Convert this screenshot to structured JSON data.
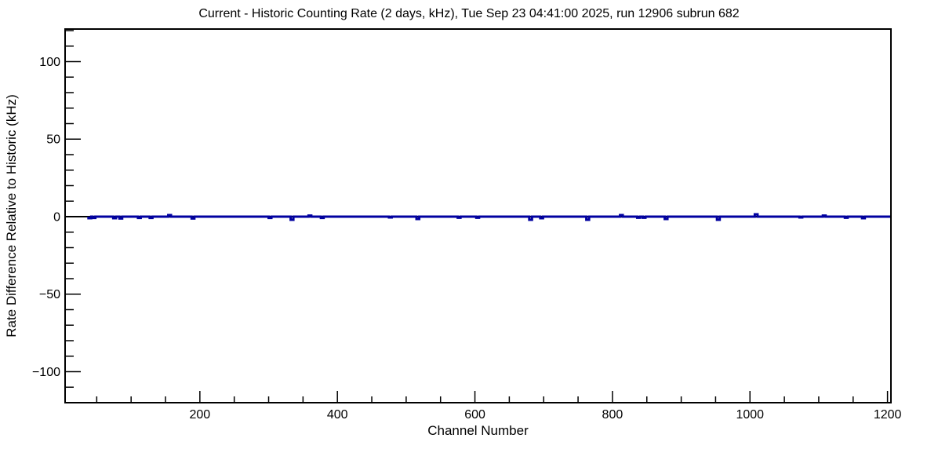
{
  "chart_data": {
    "type": "line",
    "title": "Current - Historic Counting Rate (2 days, kHz), Tue Sep 23 04:41:00 2025, run 12906 subrun 682",
    "xlabel": "Channel Number",
    "ylabel": "Rate Difference Relative to Historic (kHz)",
    "xlim": [
      4,
      1205
    ],
    "ylim": [
      -120,
      121
    ],
    "x_major_ticks": [
      200,
      400,
      600,
      800,
      1000,
      1200
    ],
    "x_minor_step": 50,
    "y_major_ticks": [
      -100,
      -50,
      0,
      50,
      100
    ],
    "y_minor_step": 10,
    "grid": false,
    "legend": null,
    "line_color": "#0000a0",
    "zero_line_color": "#000000",
    "frame_color": "#000000",
    "background_color": "#ffffff",
    "baseline_kHz": 0,
    "data_start_channel": 38,
    "data_end_channel": 1205,
    "spike_half_width_channels": 2,
    "spikes_channel_kHz": [
      [
        40,
        -1.0
      ],
      [
        46,
        -0.8
      ],
      [
        76,
        -1.0
      ],
      [
        85,
        -1.2
      ],
      [
        112,
        -0.8
      ],
      [
        129,
        -0.8
      ],
      [
        156,
        1.0
      ],
      [
        190,
        -1.2
      ],
      [
        302,
        -0.8
      ],
      [
        334,
        -2.0
      ],
      [
        360,
        0.7
      ],
      [
        378,
        -0.8
      ],
      [
        477,
        -0.5
      ],
      [
        517,
        -1.5
      ],
      [
        577,
        -0.7
      ],
      [
        604,
        -0.7
      ],
      [
        681,
        -2.0
      ],
      [
        697,
        -1.0
      ],
      [
        764,
        -2.0
      ],
      [
        813,
        1.0
      ],
      [
        838,
        -0.7
      ],
      [
        846,
        -0.7
      ],
      [
        878,
        -1.5
      ],
      [
        954,
        -2.0
      ],
      [
        1009,
        1.5
      ],
      [
        1074,
        -0.5
      ],
      [
        1108,
        0.7
      ],
      [
        1140,
        -0.7
      ],
      [
        1165,
        -1.0
      ]
    ]
  }
}
